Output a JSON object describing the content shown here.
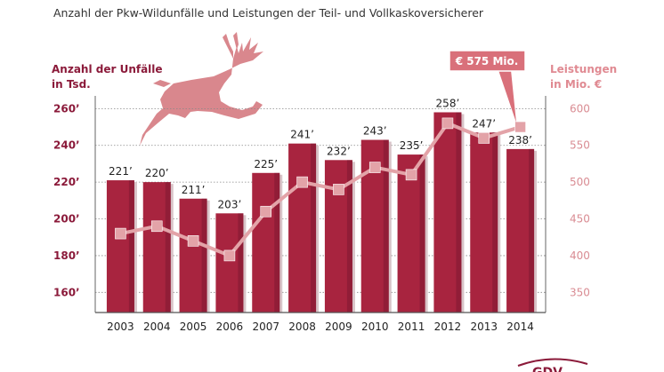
{
  "title": "Anzahl der Pkw-Wildunfälle und Leistungen der Teil- und Vollkaskoversicherer",
  "left_axis_title": [
    "Anzahl der Unfälle",
    "in Tsd."
  ],
  "right_axis_title": [
    "Leistungen",
    "in Mio. €"
  ],
  "callout_label": "€ 575 Mio.",
  "icons": {
    "deer": "leaping-deer-icon",
    "logo": "gdv-logo"
  },
  "colors": {
    "bar": "#a8243f",
    "bar_dark": "#7a1530",
    "line": "#e3a3a8",
    "accent": "#8b1a3a",
    "callout": "#d9707a"
  },
  "chart_data": {
    "type": "bar",
    "categories": [
      "2003",
      "2004",
      "2005",
      "2006",
      "2007",
      "2008",
      "2009",
      "2010",
      "2011",
      "2012",
      "2013",
      "2014"
    ],
    "bar_series": {
      "values": [
        221,
        220,
        211,
        203,
        225,
        241,
        232,
        243,
        235,
        258,
        247,
        238
      ],
      "data_labels": [
        "221’",
        "220’",
        "211’",
        "203’",
        "225’",
        "241’",
        "232’",
        "243’",
        "235’",
        "258’",
        "247’",
        "238’"
      ]
    },
    "line_series": {
      "values": [
        430,
        440,
        420,
        400,
        460,
        500,
        490,
        520,
        510,
        580,
        560,
        575
      ]
    },
    "left_axis": {
      "ylim": [
        150,
        265
      ],
      "ticks": [
        160,
        180,
        200,
        220,
        240,
        260
      ],
      "tick_labels": [
        "160’",
        "180’",
        "200’",
        "220’",
        "240’",
        "260’"
      ]
    },
    "right_axis": {
      "ylim": [
        325,
        612.5
      ],
      "ticks": [
        350,
        400,
        450,
        500,
        550,
        600
      ],
      "tick_labels": [
        "350",
        "400",
        "450",
        "500",
        "550",
        "600"
      ]
    },
    "grid": true
  }
}
